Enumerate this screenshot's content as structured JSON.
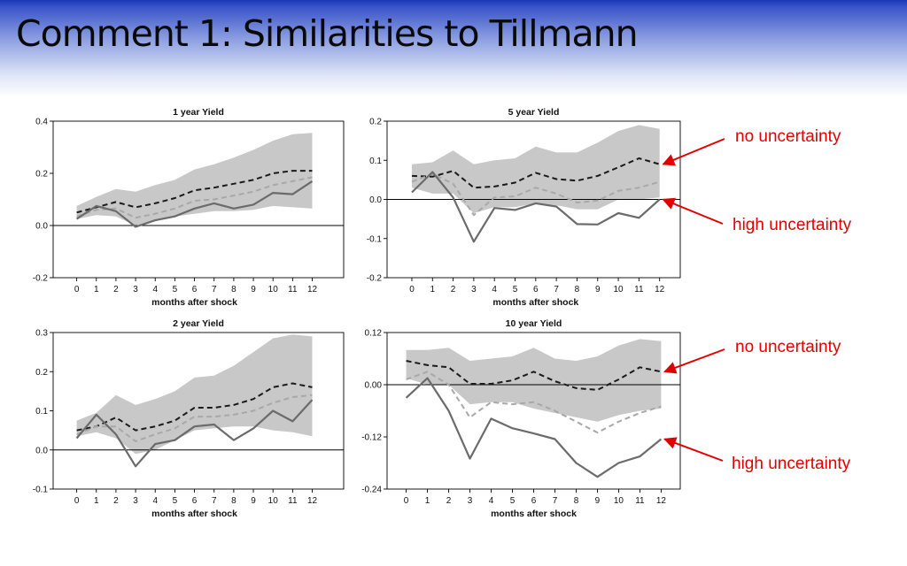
{
  "slide": {
    "title": "Comment 1:  Similarities to Tillmann"
  },
  "colors": {
    "band": "#c8c8c8",
    "no_uncertainty_line": "#1a1a1a",
    "gray_dashed_line": "#a8a8a8",
    "high_uncertainty_line": "#6b6b6b",
    "annotation": "#e00000"
  },
  "annotations": [
    {
      "id": "a1",
      "text": "no uncertainty",
      "panel": 1,
      "arrow_target": "no-uncertainty"
    },
    {
      "id": "a2",
      "text": "high uncertainty",
      "panel": 1,
      "arrow_target": "high-uncertainty"
    },
    {
      "id": "a3",
      "text": "no uncertainty",
      "panel": 3,
      "arrow_target": "no-uncertainty"
    },
    {
      "id": "a4",
      "text": "high uncertainty",
      "panel": 3,
      "arrow_target": "high-uncertainty"
    }
  ],
  "chart_data": [
    {
      "type": "line",
      "title": "1 year Yield",
      "xlabel": "months after shock",
      "x": [
        0,
        1,
        2,
        3,
        4,
        5,
        6,
        7,
        8,
        9,
        10,
        11,
        12
      ],
      "xlim": [
        -1.2,
        13.6
      ],
      "ylim": [
        -0.2,
        0.4
      ],
      "yticks": [
        -0.2,
        0.0,
        0.2,
        0.4
      ],
      "ytick_labels": [
        "-0.2",
        "0.0",
        "0.2",
        "0.4"
      ],
      "zero_line": true,
      "band": {
        "upper": [
          0.075,
          0.11,
          0.14,
          0.13,
          0.155,
          0.175,
          0.215,
          0.235,
          0.26,
          0.29,
          0.325,
          0.35,
          0.355
        ],
        "lower": [
          0.025,
          0.04,
          0.035,
          0.0,
          0.02,
          0.035,
          0.045,
          0.055,
          0.055,
          0.06,
          0.075,
          0.07,
          0.065
        ]
      },
      "series": [
        {
          "role": "no-uncertainty",
          "style": "dashed-dark",
          "values": [
            0.05,
            0.07,
            0.09,
            0.07,
            0.085,
            0.105,
            0.135,
            0.145,
            0.16,
            0.175,
            0.2,
            0.21,
            0.21
          ]
        },
        {
          "role": "gray-dashed",
          "style": "dashed-light",
          "values": [
            0.035,
            0.06,
            0.065,
            0.03,
            0.045,
            0.065,
            0.095,
            0.1,
            0.115,
            0.13,
            0.155,
            0.17,
            0.185
          ]
        },
        {
          "role": "high-uncertainty",
          "style": "solid",
          "values": [
            0.025,
            0.075,
            0.055,
            -0.005,
            0.02,
            0.035,
            0.065,
            0.085,
            0.065,
            0.08,
            0.125,
            0.12,
            0.17
          ]
        }
      ]
    },
    {
      "type": "line",
      "title": "5 year Yield",
      "xlabel": "months after shock",
      "x": [
        0,
        1,
        2,
        3,
        4,
        5,
        6,
        7,
        8,
        9,
        10,
        11,
        12
      ],
      "xlim": [
        -1.2,
        13.0
      ],
      "ylim": [
        -0.2,
        0.2
      ],
      "yticks": [
        -0.2,
        -0.1,
        0.0,
        0.1,
        0.2
      ],
      "ytick_labels": [
        "-0.2",
        "-0.1",
        "0.0",
        "0.1",
        "0.2"
      ],
      "zero_line": true,
      "band": {
        "upper": [
          0.09,
          0.095,
          0.125,
          0.09,
          0.1,
          0.105,
          0.135,
          0.12,
          0.12,
          0.145,
          0.175,
          0.19,
          0.18
        ],
        "lower": [
          0.03,
          0.015,
          0.015,
          -0.035,
          -0.02,
          -0.02,
          -0.01,
          -0.015,
          -0.025,
          -0.025,
          0.0,
          0.0,
          0.005
        ]
      },
      "series": [
        {
          "role": "no-uncertainty",
          "style": "dashed-dark",
          "values": [
            0.06,
            0.058,
            0.073,
            0.03,
            0.033,
            0.043,
            0.068,
            0.052,
            0.048,
            0.06,
            0.082,
            0.105,
            0.09
          ]
        },
        {
          "role": "gray-dashed",
          "style": "dashed-light",
          "values": [
            0.045,
            0.065,
            0.04,
            -0.04,
            0.005,
            0.008,
            0.03,
            0.015,
            -0.008,
            -0.003,
            0.022,
            0.03,
            0.045
          ]
        },
        {
          "role": "high-uncertainty",
          "style": "solid",
          "values": [
            0.018,
            0.07,
            0.005,
            -0.108,
            -0.022,
            -0.027,
            -0.01,
            -0.018,
            -0.063,
            -0.064,
            -0.035,
            -0.047,
            0.0
          ]
        }
      ]
    },
    {
      "type": "line",
      "title": "2 year Yield",
      "xlabel": "months after shock",
      "x": [
        0,
        1,
        2,
        3,
        4,
        5,
        6,
        7,
        8,
        9,
        10,
        11,
        12
      ],
      "xlim": [
        -1.2,
        13.6
      ],
      "ylim": [
        -0.1,
        0.3
      ],
      "yticks": [
        -0.1,
        0.0,
        0.1,
        0.2,
        0.3
      ],
      "ytick_labels": [
        "-0.1",
        "0.0",
        "0.1",
        "0.2",
        "0.3"
      ],
      "zero_line": true,
      "band": {
        "upper": [
          0.075,
          0.095,
          0.14,
          0.115,
          0.13,
          0.15,
          0.185,
          0.19,
          0.215,
          0.25,
          0.285,
          0.295,
          0.29
        ],
        "lower": [
          0.035,
          0.045,
          0.03,
          -0.01,
          0.0,
          0.025,
          0.05,
          0.055,
          0.06,
          0.06,
          0.05,
          0.045,
          0.035
        ]
      },
      "series": [
        {
          "role": "no-uncertainty",
          "style": "dashed-dark",
          "values": [
            0.05,
            0.06,
            0.083,
            0.05,
            0.06,
            0.075,
            0.108,
            0.108,
            0.115,
            0.13,
            0.16,
            0.17,
            0.16
          ]
        },
        {
          "role": "gray-dashed",
          "style": "dashed-light",
          "values": [
            0.04,
            0.06,
            0.06,
            0.022,
            0.04,
            0.055,
            0.085,
            0.085,
            0.09,
            0.1,
            0.12,
            0.135,
            0.14
          ]
        },
        {
          "role": "high-uncertainty",
          "style": "solid",
          "values": [
            0.03,
            0.09,
            0.04,
            -0.042,
            0.015,
            0.025,
            0.06,
            0.065,
            0.025,
            0.055,
            0.1,
            0.073,
            0.128
          ]
        }
      ]
    },
    {
      "type": "line",
      "title": "10 year Yield",
      "xlabel": "months after shock",
      "x": [
        0,
        1,
        2,
        3,
        4,
        5,
        6,
        7,
        8,
        9,
        10,
        11,
        12
      ],
      "xlim": [
        -0.9,
        12.9
      ],
      "ylim": [
        -0.24,
        0.12
      ],
      "yticks": [
        -0.24,
        -0.12,
        0.0,
        0.12
      ],
      "ytick_labels": [
        "-0.24",
        "-0.12",
        "0.00",
        "0.12"
      ],
      "zero_line": true,
      "band": {
        "upper": [
          0.08,
          0.08,
          0.085,
          0.055,
          0.06,
          0.065,
          0.085,
          0.06,
          0.055,
          0.065,
          0.09,
          0.105,
          0.1
        ],
        "lower": [
          0.015,
          0.0,
          0.0,
          -0.045,
          -0.04,
          -0.04,
          -0.055,
          -0.065,
          -0.075,
          -0.085,
          -0.07,
          -0.06,
          -0.055
        ]
      },
      "series": [
        {
          "role": "no-uncertainty",
          "style": "dashed-dark",
          "values": [
            0.055,
            0.045,
            0.04,
            0.002,
            0.002,
            0.01,
            0.03,
            0.008,
            -0.008,
            -0.012,
            0.012,
            0.04,
            0.03
          ]
        },
        {
          "role": "gray-dashed",
          "style": "dashed-light",
          "values": [
            0.012,
            0.03,
            0.0,
            -0.075,
            -0.04,
            -0.045,
            -0.04,
            -0.06,
            -0.085,
            -0.11,
            -0.085,
            -0.065,
            -0.05
          ]
        },
        {
          "role": "high-uncertainty",
          "style": "solid",
          "values": [
            -0.03,
            0.015,
            -0.06,
            -0.17,
            -0.078,
            -0.1,
            -0.112,
            -0.125,
            -0.18,
            -0.212,
            -0.18,
            -0.165,
            -0.125
          ]
        }
      ]
    }
  ]
}
